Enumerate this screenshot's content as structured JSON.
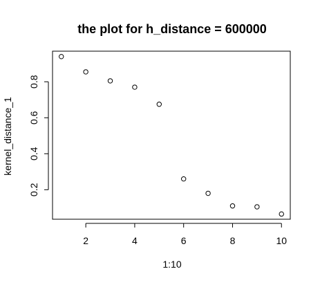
{
  "chart_data": {
    "type": "scatter",
    "title": "the plot for h_distance = 600000",
    "xlabel": "1:10",
    "ylabel": "kernel_distance_1",
    "x": [
      1,
      2,
      3,
      4,
      5,
      6,
      7,
      8,
      9,
      10
    ],
    "y": [
      0.94,
      0.855,
      0.805,
      0.77,
      0.675,
      0.26,
      0.18,
      0.11,
      0.105,
      0.065
    ],
    "xlim": [
      0.64,
      10.36
    ],
    "ylim": [
      0.036,
      0.97
    ],
    "xticks": [
      2,
      4,
      6,
      8,
      10
    ],
    "yticks": [
      0.2,
      0.4,
      0.6,
      0.8
    ],
    "xtick_labels": [
      "2",
      "4",
      "6",
      "8",
      "10"
    ],
    "ytick_labels": [
      "0.2",
      "0.4",
      "0.6",
      "0.8"
    ],
    "marker": "open-circle",
    "grid": false,
    "legend": "none"
  }
}
